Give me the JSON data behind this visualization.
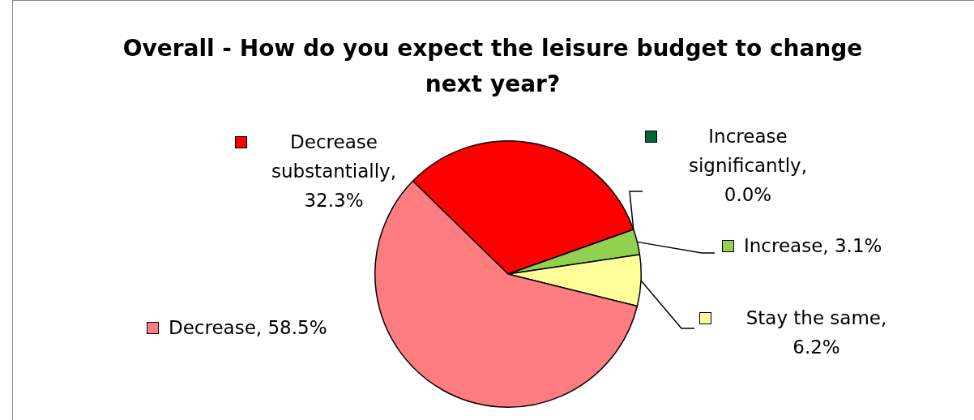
{
  "chart_data": {
    "type": "pie",
    "title": "Overall - How do you expect the leisure budget to change next year?",
    "categories": [
      "Decrease substantially",
      "Increase significantly",
      "Increase",
      "Stay the same",
      "Decrease"
    ],
    "values": [
      32.3,
      0.0,
      3.1,
      6.2,
      58.5
    ],
    "value_labels": [
      ", 32.3%",
      ", 0.0%",
      ", 3.1%",
      ", 6.2%",
      ", 58.5%"
    ],
    "legend": "right",
    "colors": [
      "#ff0000",
      "#006633",
      "#92d050",
      "#ffff99",
      "#ff7c80"
    ]
  }
}
